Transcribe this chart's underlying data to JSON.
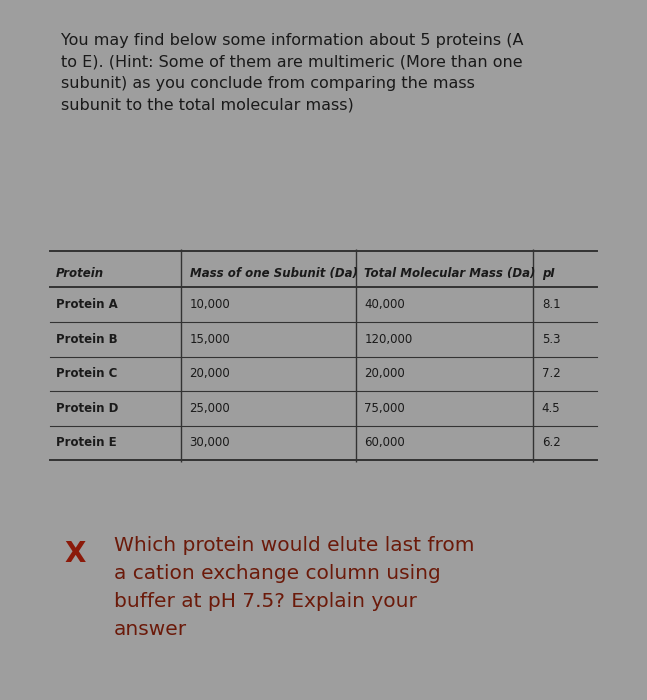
{
  "intro_text": "You may find below some information about 5 proteins (A\nto E). (Hint: Some of them are multimeric (More than one\nsubunit) as you conclude from comparing the mass\nsubunit to the total molecular mass)",
  "table_headers": [
    "Protein",
    "Mass of one Subunit (Da)",
    "Total Molecular Mass (Da)",
    "pI"
  ],
  "table_rows": [
    [
      "Protein A",
      "10,000",
      "40,000",
      "8.1"
    ],
    [
      "Protein B",
      "15,000",
      "120,000",
      "5.3"
    ],
    [
      "Protein C",
      "20,000",
      "20,000",
      "7.2"
    ],
    [
      "Protein D",
      "25,000",
      "75,000",
      "4.5"
    ],
    [
      "Protein E",
      "30,000",
      "60,000",
      "6.2"
    ]
  ],
  "question_marker": "X",
  "question_text": "Which protein would elute last from\na cation exchange column using\nbuffer at pH 7.5? Explain your\nanswer",
  "bg_outer": "#9e9e9e",
  "bg_card_white": "#f0eeea",
  "bg_question_card": "#e8e5e0",
  "text_color_dark": "#1a1a1a",
  "marker_color": "#8b1a0a",
  "question_text_color": "#6b1a0a",
  "intro_fontsize": 11.5,
  "table_header_fontsize": 8.5,
  "table_data_fontsize": 8.5,
  "question_fontsize": 14.5,
  "marker_fontsize": 20
}
